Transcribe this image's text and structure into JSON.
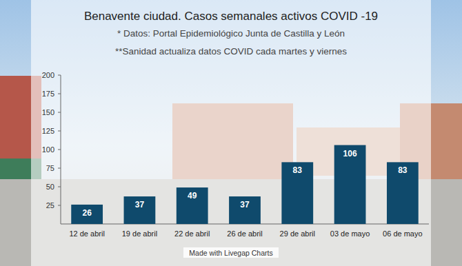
{
  "chart_data": {
    "type": "bar",
    "title": "Benavente ciudad. Casos semanales activos COVID -19",
    "subtitle": [
      "* Datos: Portal Epidemiológico Junta de Castilla y León",
      "**Sanidad actualiza datos COVID cada martes y viernes"
    ],
    "annotations": [
      "Made with Livegap Charts"
    ],
    "categories": [
      "12 de abril",
      "19 de abril",
      "22 de abril",
      "26 de abril",
      "29 de abril",
      "03 de mayo",
      "06 de mayo"
    ],
    "values": [
      26,
      37,
      49,
      37,
      83,
      106,
      83
    ],
    "color": "#0f4a6c",
    "ylim": [
      0,
      200
    ],
    "yticks": [
      25,
      50,
      75,
      100,
      125,
      150,
      175,
      200
    ],
    "grid": false,
    "data_labels": true
  }
}
